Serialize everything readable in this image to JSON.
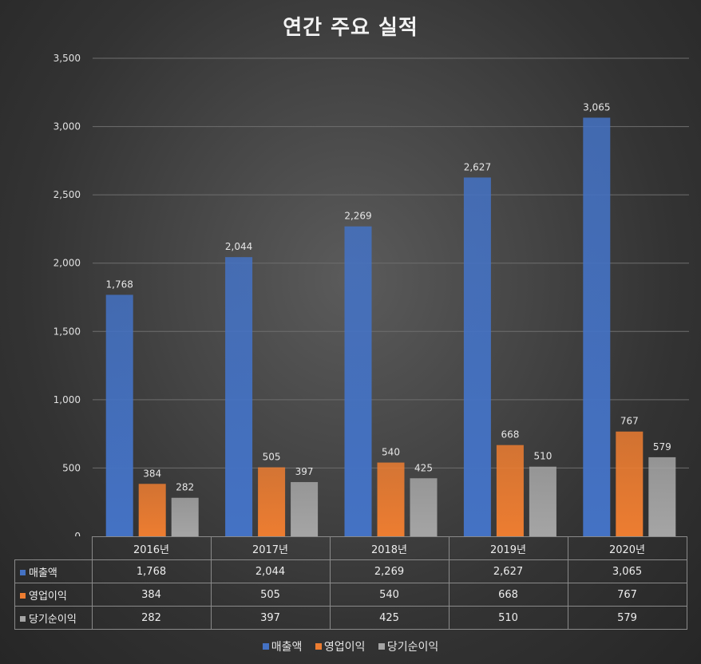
{
  "chart_data": {
    "type": "bar",
    "title": "연간 주요 실적",
    "categories": [
      "2016년",
      "2017년",
      "2018년",
      "2019년",
      "2020년"
    ],
    "series": [
      {
        "name": "매출액",
        "values": [
          1768,
          2044,
          2269,
          2627,
          3065
        ],
        "labels": [
          "1,768",
          "2,044",
          "2,269",
          "2,627",
          "3,065"
        ],
        "color": "#4472c4"
      },
      {
        "name": "영업이익",
        "values": [
          384,
          505,
          540,
          668,
          767
        ],
        "labels": [
          "384",
          "505",
          "540",
          "668",
          "767"
        ],
        "color": "#ed7d31"
      },
      {
        "name": "당기순이익",
        "values": [
          282,
          397,
          425,
          510,
          579
        ],
        "labels": [
          "282",
          "397",
          "425",
          "510",
          "579"
        ],
        "color": "#a5a5a5"
      }
    ],
    "yticks": [
      0,
      500,
      1000,
      1500,
      2000,
      2500,
      3000,
      3500
    ],
    "ytick_labels": [
      "0",
      "500",
      "1,000",
      "1,500",
      "2,000",
      "2,500",
      "3,000",
      "3,500"
    ],
    "ylim": [
      0,
      3500
    ],
    "grid": true,
    "legend_position": "bottom",
    "data_table": true
  }
}
